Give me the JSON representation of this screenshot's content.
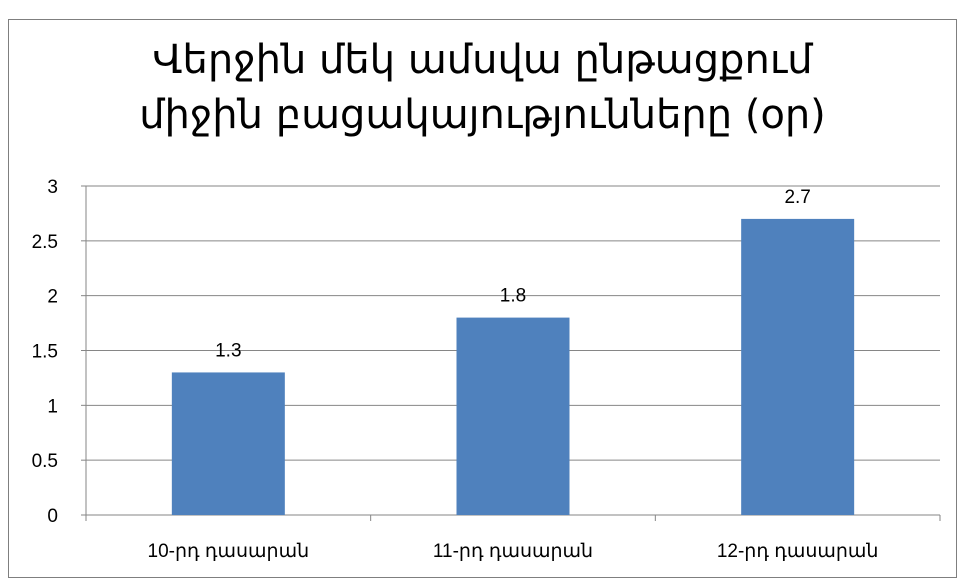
{
  "chart_data": {
    "type": "bar",
    "title": "Վերջին մեկ ամսվա ընթացքում\nմիջին բացակայությունները (օր)",
    "categories": [
      "10-րդ դասարան",
      "11-րդ դասարան",
      "12-րդ դասարան"
    ],
    "values": [
      1.3,
      1.8,
      2.7
    ],
    "data_labels": [
      "1.3",
      "1.8",
      "2.7"
    ],
    "y_ticks": [
      "0",
      "0.5",
      "1",
      "1.5",
      "2",
      "2.5",
      "3"
    ],
    "ylim": [
      0,
      3
    ],
    "grid": true,
    "legend": "none",
    "bar_color": "#4f81bd",
    "xlabel": "",
    "ylabel": ""
  }
}
